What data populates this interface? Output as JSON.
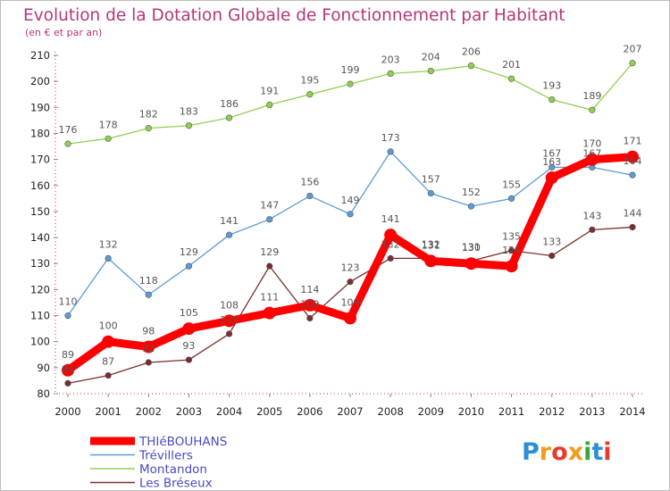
{
  "chart_data": {
    "type": "line",
    "title": "Evolution de la Dotation Globale de Fonctionnement par Habitant",
    "subtitle": "(en € et par an)",
    "xlabel": "",
    "ylabel": "",
    "categories": [
      "2000",
      "2001",
      "2002",
      "2003",
      "2004",
      "2005",
      "2006",
      "2007",
      "2008",
      "2009",
      "2010",
      "2011",
      "2012",
      "2013",
      "2014"
    ],
    "ylim": [
      80,
      210
    ],
    "yticks": [
      80,
      90,
      100,
      110,
      120,
      130,
      140,
      150,
      160,
      170,
      180,
      190,
      200,
      210
    ],
    "grid": false,
    "legend_position": "bottom-left",
    "series": [
      {
        "name": "Montandon",
        "color": "#90d050",
        "values": [
          176,
          178,
          182,
          183,
          186,
          191,
          195,
          199,
          203,
          204,
          206,
          201,
          193,
          189,
          207
        ],
        "labels": [
          "176",
          "178",
          "182",
          "183",
          "186",
          "191",
          "195",
          "199",
          "203",
          "204",
          "206",
          "201",
          "193",
          "189",
          "207"
        ],
        "bold": false
      },
      {
        "name": "Trévillers",
        "color": "#5b9bd5",
        "values": [
          110,
          132,
          118,
          129,
          141,
          147,
          156,
          149,
          173,
          157,
          152,
          155,
          167,
          167,
          164
        ],
        "labels": [
          "110",
          "132",
          "118",
          "129",
          "141",
          "147",
          "156",
          "149",
          "173",
          "157",
          "152",
          "155",
          "167",
          "167",
          "164"
        ],
        "bold": false
      },
      {
        "name": "Les Bréseux",
        "color": "#7b2d2d",
        "values": [
          84,
          87,
          92,
          93,
          103,
          129,
          109,
          123,
          132,
          132,
          131,
          135,
          133,
          143,
          144
        ],
        "labels": [
          "84",
          "87",
          "92",
          "93",
          "103",
          "129",
          "109",
          "123",
          "132",
          "132",
          "131",
          "135",
          "133",
          "143",
          "144"
        ],
        "bold": false
      },
      {
        "name": "THIéBOUHANS",
        "color": "#ff0000",
        "values": [
          89,
          100,
          98,
          105,
          108,
          111,
          114,
          109,
          141,
          131,
          130,
          129,
          163,
          170,
          171
        ],
        "labels": [
          "89",
          "100",
          "98",
          "105",
          "108",
          "111",
          "114",
          "109",
          "141",
          "131",
          "130",
          "129",
          "163",
          "170",
          "171"
        ],
        "bold": true
      }
    ]
  },
  "legend_order": [
    "THIéBOUHANS",
    "Trévillers",
    "Montandon",
    "Les Bréseux"
  ],
  "logo": {
    "text": "Proxiti",
    "colors": [
      "#2b8fd8",
      "#f39a1f",
      "#e83a2e",
      "#f39a1f",
      "#3aa63a",
      "#2b8fd8",
      "#e83a2e"
    ]
  }
}
